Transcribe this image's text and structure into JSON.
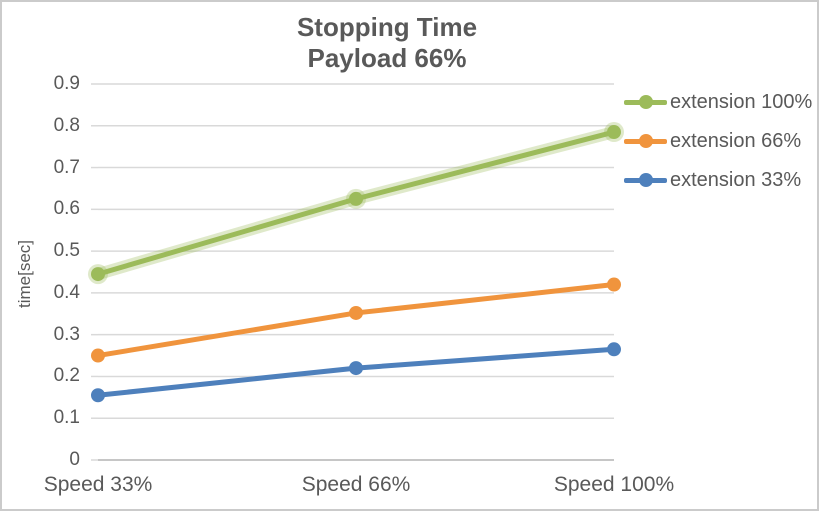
{
  "chart_data": {
    "type": "line",
    "title_line1": "Stopping Time",
    "title_line2": "Payload 66%",
    "ylabel": "time[sec]",
    "xlabel": "",
    "categories": [
      "Speed 33%",
      "Speed 66%",
      "Speed 100%"
    ],
    "series": [
      {
        "name": "extension 100%",
        "color": "#9cbb5a",
        "glow": true,
        "values": [
          0.445,
          0.625,
          0.785
        ]
      },
      {
        "name": "extension 66%",
        "color": "#f0943d",
        "glow": false,
        "values": [
          0.25,
          0.352,
          0.42
        ]
      },
      {
        "name": "extension 33%",
        "color": "#4e80bc",
        "glow": false,
        "values": [
          0.155,
          0.22,
          0.265
        ]
      }
    ],
    "ylim": [
      0,
      0.9
    ],
    "ytick_step": 0.1,
    "ytick_labels": [
      "0",
      "0.1",
      "0.2",
      "0.3",
      "0.4",
      "0.5",
      "0.6",
      "0.7",
      "0.8",
      "0.9"
    ],
    "grid": true,
    "legend_position": "right",
    "colors": {
      "text": "#595959",
      "gridline": "#d9d9d9",
      "axis_line": "#c6c6c6",
      "border": "#cbcbcb",
      "background": "#ffffff"
    }
  }
}
